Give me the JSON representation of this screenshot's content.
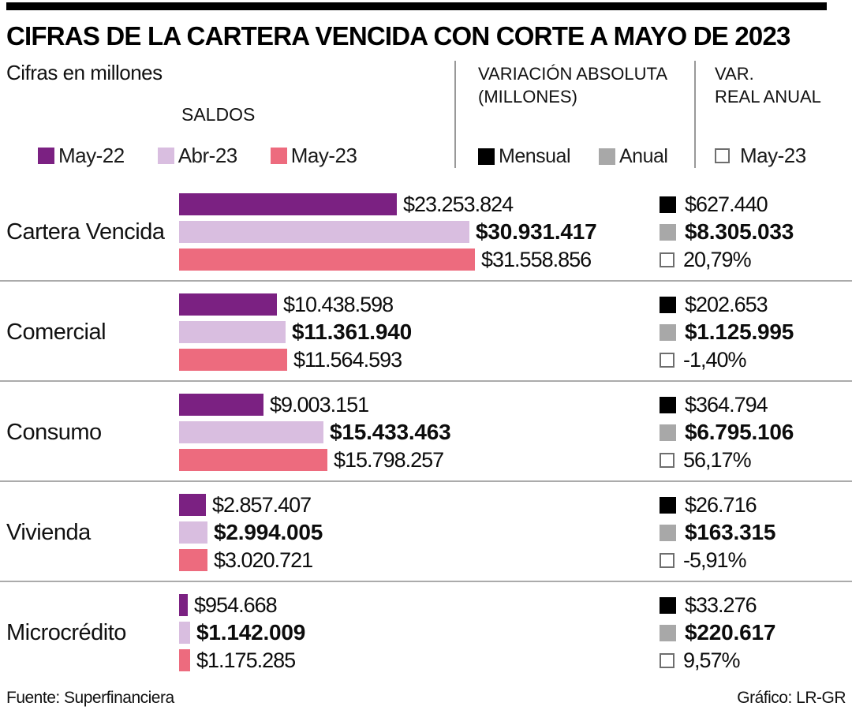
{
  "page": {
    "title": "CIFRAS DE LA CARTERA VENCIDA CON CORTE A MAYO DE 2023",
    "subtitle": "Cifras en millones",
    "source": "Fuente: Superfinanciera",
    "credit": "Gráfico: LR-GR"
  },
  "colors": {
    "may22": "#7B2182",
    "abr23": "#D9BEE0",
    "may23": "#ED6B7E",
    "mensual": "#000000",
    "anual": "#A8A8A8"
  },
  "header": {
    "saldos_title": "SALDOS",
    "saldos_legend": [
      "May-22",
      "Abr-23",
      "May-23"
    ],
    "variacion_title_1": "VARIACIÓN ABSOLUTA",
    "variacion_title_2": "(MILLONES)",
    "variacion_legend": [
      "Mensual",
      "Anual"
    ],
    "var_real_title_1": "VAR.",
    "var_real_title_2": "REAL ANUAL",
    "var_real_legend": [
      "May-23"
    ]
  },
  "chart_data": {
    "type": "bar",
    "orientation": "horizontal",
    "title": "CIFRAS DE LA CARTERA VENCIDA CON CORTE A MAYO DE 2023",
    "unit_note": "Cifras en millones",
    "series": [
      "May-22",
      "Abr-23",
      "May-23"
    ],
    "xmax": 31558856,
    "rows": [
      {
        "category": "Cartera Vencida",
        "values": [
          23253824,
          30931417,
          31558856
        ],
        "value_labels": [
          "$23.253.824",
          "$30.931.417",
          "$31.558.856"
        ],
        "variacion_mensual": "$627.440",
        "variacion_anual": "$8.305.033",
        "var_real_anual": "20,79%"
      },
      {
        "category": "Comercial",
        "values": [
          10438598,
          11361940,
          11564593
        ],
        "value_labels": [
          "$10.438.598",
          "$11.361.940",
          "$11.564.593"
        ],
        "variacion_mensual": "$202.653",
        "variacion_anual": "$1.125.995",
        "var_real_anual": "-1,40%"
      },
      {
        "category": "Consumo",
        "values": [
          9003151,
          15433463,
          15798257
        ],
        "value_labels": [
          "$9.003.151",
          "$15.433.463",
          "$15.798.257"
        ],
        "variacion_mensual": "$364.794",
        "variacion_anual": "$6.795.106",
        "var_real_anual": "56,17%"
      },
      {
        "category": "Vivienda",
        "values": [
          2857407,
          2994005,
          3020721
        ],
        "value_labels": [
          "$2.857.407",
          "$2.994.005",
          "$3.020.721"
        ],
        "variacion_mensual": "$26.716",
        "variacion_anual": "$163.315",
        "var_real_anual": "-5,91%"
      },
      {
        "category": "Microcrédito",
        "values": [
          954668,
          1142009,
          1175285
        ],
        "value_labels": [
          "$954.668",
          "$1.142.009",
          "$1.175.285"
        ],
        "variacion_mensual": "$33.276",
        "variacion_anual": "$220.617",
        "var_real_anual": "9,57%"
      }
    ]
  }
}
